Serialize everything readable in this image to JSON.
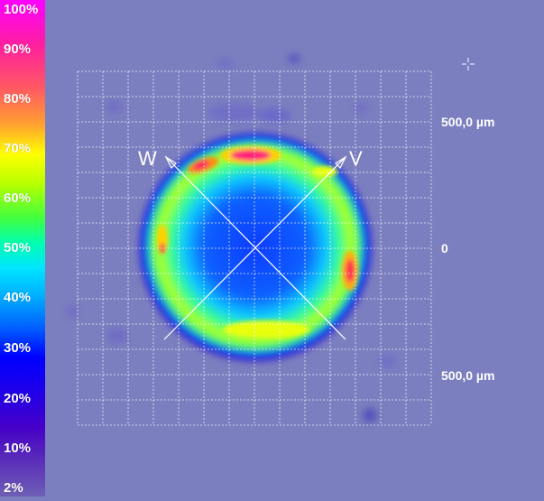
{
  "colorbar": {
    "labels": [
      "100%",
      "90%",
      "80%",
      "70%",
      "60%",
      "50%",
      "40%",
      "30%",
      "20%",
      "10%",
      "2%"
    ]
  },
  "axes": {
    "y_top": "500,0 µm",
    "y_mid": "0",
    "y_bottom": "500,0 µm"
  },
  "markers": {
    "left": "W",
    "right": "V"
  },
  "colors": {
    "background": "#7b7fbf",
    "grid": "#ffffff"
  }
}
